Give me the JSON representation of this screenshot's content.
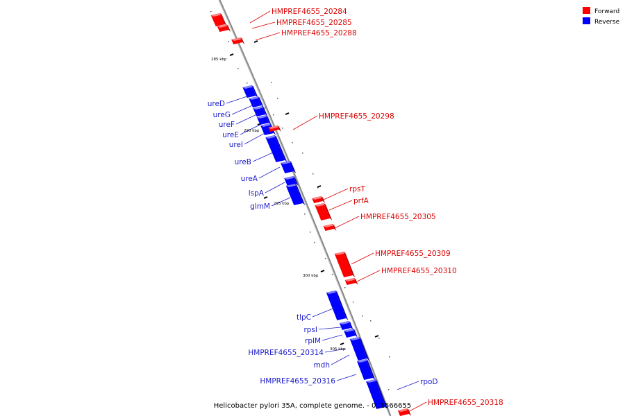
{
  "legend": [
    {
      "label": "Forward",
      "color": "#ff0000"
    },
    {
      "label": "Reverse",
      "color": "#0000ff"
    }
  ],
  "caption": "Helicobacter pylori 35A, complete genome. - 0..1566655",
  "ticks": [
    "285 kbp",
    "290 kbp",
    "295 kbp",
    "300 kbp",
    "305 kbp"
  ],
  "genes": [
    {
      "label": "HMPREF4655_20284",
      "strand": "forward"
    },
    {
      "label": "HMPREF4655_20285",
      "strand": "forward"
    },
    {
      "label": "HMPREF4655_20288",
      "strand": "forward"
    },
    {
      "label": "ureD",
      "strand": "reverse"
    },
    {
      "label": "ureG",
      "strand": "reverse"
    },
    {
      "label": "ureF",
      "strand": "reverse"
    },
    {
      "label": "ureE",
      "strand": "reverse"
    },
    {
      "label": "ureI",
      "strand": "reverse"
    },
    {
      "label": "ureB",
      "strand": "reverse"
    },
    {
      "label": "ureA",
      "strand": "reverse"
    },
    {
      "label": "lspA",
      "strand": "reverse"
    },
    {
      "label": "glmM",
      "strand": "reverse"
    },
    {
      "label": "HMPREF4655_20298",
      "strand": "forward"
    },
    {
      "label": "rpsT",
      "strand": "forward"
    },
    {
      "label": "prfA",
      "strand": "forward"
    },
    {
      "label": "HMPREF4655_20305",
      "strand": "forward"
    },
    {
      "label": "HMPREF4655_20309",
      "strand": "forward"
    },
    {
      "label": "HMPREF4655_20310",
      "strand": "forward"
    },
    {
      "label": "tlpC",
      "strand": "reverse"
    },
    {
      "label": "rpsI",
      "strand": "reverse"
    },
    {
      "label": "rplM",
      "strand": "reverse"
    },
    {
      "label": "HMPREF4655_20314",
      "strand": "reverse"
    },
    {
      "label": "mdh",
      "strand": "reverse"
    },
    {
      "label": "HMPREF4655_20316",
      "strand": "reverse"
    },
    {
      "label": "rpoD",
      "strand": "reverse"
    },
    {
      "label": "HMPREF4655_20318",
      "strand": "forward"
    }
  ]
}
